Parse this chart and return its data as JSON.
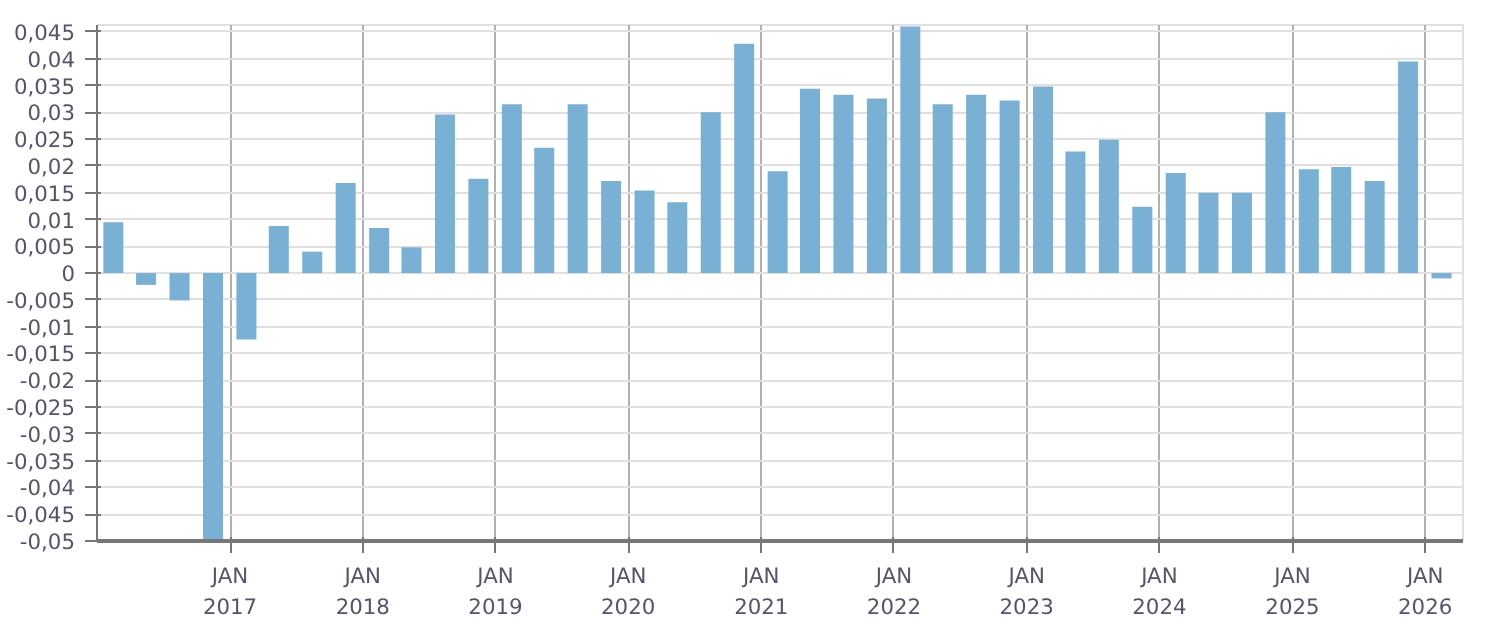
{
  "chart_data": {
    "type": "bar",
    "color": "#7ab0d4",
    "x": [
      "2016-02-15",
      "2016-05-15",
      "2016-08-15",
      "2016-11-15",
      "2017-02-15",
      "2017-05-15",
      "2017-08-15",
      "2017-11-15",
      "2018-02-15",
      "2018-05-15",
      "2018-08-15",
      "2018-11-15",
      "2019-02-15",
      "2019-05-15",
      "2019-08-15",
      "2019-11-15",
      "2020-02-15",
      "2020-05-15",
      "2020-08-15",
      "2020-11-15",
      "2021-02-15",
      "2021-05-15",
      "2021-08-15",
      "2021-11-15",
      "2022-02-15",
      "2022-05-15",
      "2022-08-15",
      "2022-11-15",
      "2023-02-15",
      "2023-05-15",
      "2023-08-15",
      "2023-11-15",
      "2024-02-15",
      "2024-05-15",
      "2024-08-15",
      "2024-11-15",
      "2025-02-15",
      "2025-05-15",
      "2025-08-15",
      "2025-11-15",
      "2026-02-15"
    ],
    "values": [
      0.0095,
      -0.0022,
      -0.0051,
      -0.05,
      -0.0124,
      0.0088,
      0.004,
      0.0168,
      0.0084,
      0.0048,
      0.0296,
      0.0176,
      0.0315,
      0.0234,
      0.0315,
      0.0172,
      0.0154,
      0.0132,
      0.03,
      0.0428,
      0.019,
      0.0344,
      0.0333,
      0.0326,
      0.046,
      0.0315,
      0.0333,
      0.0322,
      0.0348,
      0.0227,
      0.0249,
      0.0124,
      0.0187,
      0.015,
      0.015,
      0.03,
      0.0194,
      0.0198,
      0.0172,
      0.0395,
      -0.001
    ],
    "xlim": [
      "2016-01-01",
      "2026-04-15"
    ],
    "xticks": [
      {
        "value": "2017-01-01",
        "label": "JAN\n2017"
      },
      {
        "value": "2018-01-01",
        "label": "JAN\n2018"
      },
      {
        "value": "2019-01-01",
        "label": "JAN\n2019"
      },
      {
        "value": "2020-01-01",
        "label": "JAN\n2020"
      },
      {
        "value": "2021-01-01",
        "label": "JAN\n2021"
      },
      {
        "value": "2022-01-01",
        "label": "JAN\n2022"
      },
      {
        "value": "2023-01-01",
        "label": "JAN\n2023"
      },
      {
        "value": "2024-01-01",
        "label": "JAN\n2024"
      },
      {
        "value": "2025-01-01",
        "label": "JAN\n2025"
      },
      {
        "value": "2026-01-01",
        "label": "JAN\n2026"
      }
    ],
    "ylim": [
      -0.05,
      0.0463
    ],
    "yticks": [
      {
        "value": -0.05,
        "label": "-0,05"
      },
      {
        "value": -0.045,
        "label": "-0,045"
      },
      {
        "value": -0.04,
        "label": "-0,04"
      },
      {
        "value": -0.035,
        "label": "-0,035"
      },
      {
        "value": -0.03,
        "label": "-0,03"
      },
      {
        "value": -0.025,
        "label": "-0,025"
      },
      {
        "value": -0.02,
        "label": "-0,02"
      },
      {
        "value": -0.015,
        "label": "-0,015"
      },
      {
        "value": -0.01,
        "label": "-0,01"
      },
      {
        "value": -0.005,
        "label": "-0,005"
      },
      0,
      {
        "value": 0.005,
        "label": "0,005"
      },
      {
        "value": 0.01,
        "label": "0,01"
      },
      {
        "value": 0.015,
        "label": "0,015"
      },
      {
        "value": 0.02,
        "label": "0,02"
      },
      {
        "value": 0.025,
        "label": "0,025"
      },
      {
        "value": 0.03,
        "label": "0,03"
      },
      {
        "value": 0.035,
        "label": "0,035"
      },
      {
        "value": 0.04,
        "label": "0,04"
      },
      {
        "value": 0.045,
        "label": "0,045"
      }
    ],
    "grid": true
  }
}
